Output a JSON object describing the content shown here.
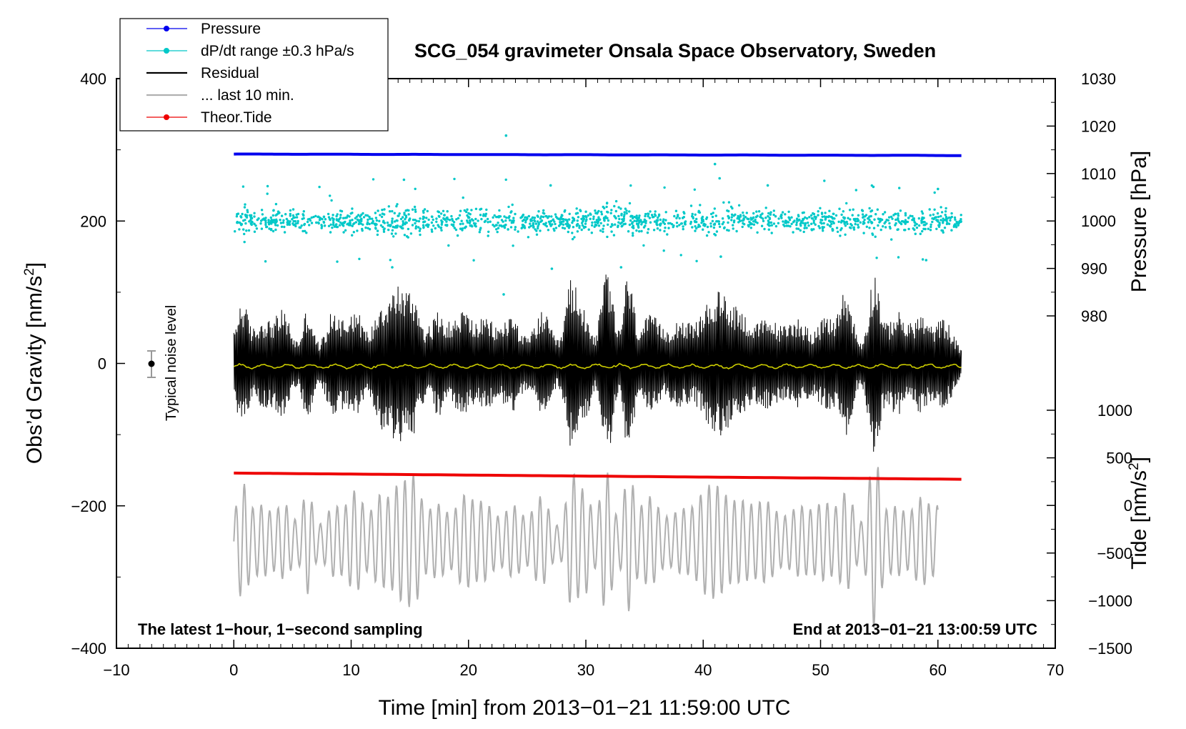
{
  "chart_data": {
    "type": "line",
    "title": "SCG_054 gravimeter Onsala Space Observatory, Sweden",
    "xlabel": "Time [min] from 2013−01−21 11:59:00 UTC",
    "ylabel_left": "Obs’d Gravity [nm/s",
    "ylabel_left_sup": "2",
    "ylabel_left_close": "]",
    "ylabel_right_pressure": "Pressure [hPa]",
    "ylabel_right_tide": "Tide [nm/s",
    "ylabel_right_tide_sup": "2",
    "ylabel_right_tide_close": "]",
    "xlim": [
      -10,
      70
    ],
    "ylim_left": [
      -400,
      400
    ],
    "pressure_lim": [
      980,
      1030
    ],
    "tide_lim": [
      -1500,
      1000
    ],
    "x_ticks": [
      "−10",
      "0",
      "10",
      "20",
      "30",
      "40",
      "50",
      "60",
      "70"
    ],
    "y_ticks_left": [
      "400",
      "200",
      "0",
      "−200",
      "−400"
    ],
    "pressure_ticks": [
      "1030",
      "1020",
      "1010",
      "1000",
      "990",
      "980"
    ],
    "tide_ticks": [
      "1000",
      "500",
      "0",
      "−500",
      "−1000",
      "−1500"
    ],
    "legend": [
      {
        "name": "Pressure",
        "color": "#0000ee",
        "style": "line-dot"
      },
      {
        "name": "dP/dt range ±0.3 hPa/s",
        "color": "#00c8c8",
        "style": "line-dot"
      },
      {
        "name": "Residual",
        "color": "#000000",
        "style": "line"
      },
      {
        "name": "... last 10 min.",
        "color": "#b0b0b0",
        "style": "line"
      },
      {
        "name": "Theor.Tide",
        "color": "#ee0000",
        "style": "line-dot"
      }
    ],
    "annotations": {
      "bottom_left": "The latest 1−hour, 1−second sampling",
      "bottom_right": "End at 2013−01−21 13:00:59 UTC",
      "noise_label": "Typical noise level"
    },
    "noise_bar": {
      "x": -7,
      "y_center": 0,
      "half_range": 20
    },
    "series": [
      {
        "name": "Pressure",
        "axis": "pressure",
        "color": "#0000ee",
        "x_range": [
          0,
          62
        ],
        "start": 1014.1,
        "end": 1013.8
      },
      {
        "name": "dP/dt",
        "axis": "left",
        "color": "#00c8c8",
        "x_range": [
          0,
          62
        ],
        "center": 200,
        "typical_spread": 10
      },
      {
        "name": "Residual",
        "axis": "left",
        "color": "#000000",
        "x_range": [
          0,
          62
        ],
        "center": 0,
        "typical_amplitude": 80,
        "max_amplitude": 160
      },
      {
        "name": "Residual mean",
        "axis": "left",
        "color": "#cccc00",
        "x_range": [
          0,
          62
        ],
        "value": -4
      },
      {
        "name": "Theor.Tide",
        "axis": "tide",
        "color": "#ee0000",
        "x_range": [
          0,
          62
        ],
        "start": 340,
        "end": 275
      },
      {
        "name": "last 10 min.",
        "axis": "left",
        "color": "#b0b0b0",
        "x_range": [
          0,
          60
        ],
        "center": -250,
        "typical_amplitude": 60,
        "max_amplitude": 150
      }
    ]
  }
}
